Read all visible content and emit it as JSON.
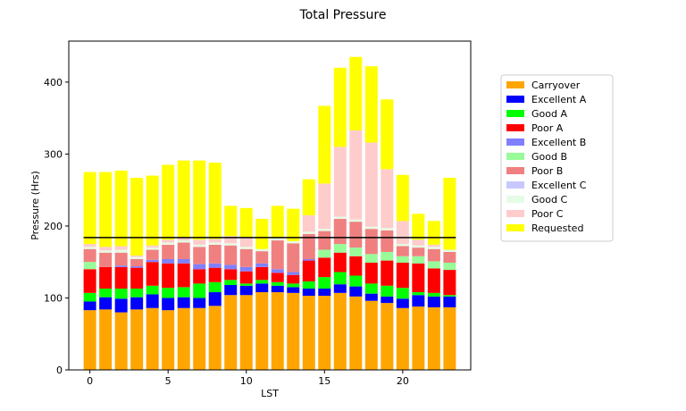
{
  "chart_data": {
    "type": "bar",
    "stacked": true,
    "title": "Total Pressure",
    "xlabel": "LST",
    "ylabel": "Pressure (Hrs)",
    "xlim": [
      -1.35,
      24.35
    ],
    "ylim": [
      0,
      457
    ],
    "xticks": [
      0,
      5,
      10,
      15,
      20
    ],
    "yticks": [
      0,
      100,
      200,
      300,
      400
    ],
    "grid": false,
    "legend_position": "right",
    "categories": [
      0,
      1,
      2,
      3,
      4,
      5,
      6,
      7,
      8,
      9,
      10,
      11,
      12,
      13,
      14,
      15,
      16,
      17,
      18,
      19,
      20,
      21,
      22,
      23
    ],
    "series": [
      {
        "name": "Carryover",
        "color": "#ffa500",
        "values": [
          83,
          84,
          80,
          84,
          86,
          83,
          86,
          86,
          89,
          104,
          104,
          108,
          108,
          107,
          103,
          103,
          107,
          102,
          96,
          93,
          86,
          88,
          87,
          87
        ]
      },
      {
        "name": "Excellent A",
        "color": "#0000ff",
        "values": [
          12,
          17,
          19,
          17,
          19,
          17,
          15,
          14,
          19,
          14,
          13,
          12,
          9,
          8,
          10,
          10,
          12,
          14,
          10,
          9,
          13,
          16,
          15,
          15
        ]
      },
      {
        "name": "Good A",
        "color": "#00ff00",
        "values": [
          12,
          12,
          14,
          12,
          12,
          14,
          14,
          20,
          14,
          7,
          3,
          5,
          5,
          5,
          10,
          16,
          17,
          15,
          14,
          15,
          15,
          4,
          5,
          2
        ]
      },
      {
        "name": "Poor A",
        "color": "#ff0000",
        "values": [
          33,
          30,
          30,
          29,
          33,
          34,
          33,
          20,
          20,
          15,
          17,
          18,
          13,
          12,
          29,
          27,
          27,
          27,
          29,
          35,
          35,
          40,
          34,
          35
        ]
      },
      {
        "name": "Excellent B",
        "color": "#8080ff",
        "values": [
          0,
          0,
          2,
          2,
          3,
          6,
          6,
          7,
          6,
          6,
          6,
          5,
          5,
          4,
          2,
          0,
          0,
          0,
          0,
          0,
          0,
          0,
          0,
          0
        ]
      },
      {
        "name": "Good B",
        "color": "#98fb98",
        "values": [
          10,
          0,
          0,
          0,
          0,
          0,
          0,
          0,
          0,
          0,
          0,
          0,
          0,
          0,
          0,
          11,
          12,
          12,
          12,
          12,
          9,
          10,
          10,
          10
        ]
      },
      {
        "name": "Poor B",
        "color": "#f08080",
        "values": [
          18,
          20,
          18,
          10,
          14,
          20,
          23,
          24,
          26,
          27,
          25,
          17,
          40,
          40,
          35,
          26,
          35,
          36,
          35,
          30,
          14,
          12,
          17,
          15
        ]
      },
      {
        "name": "Excellent C",
        "color": "#c8c8ff",
        "values": [
          0,
          0,
          0,
          0,
          0,
          0,
          0,
          0,
          0,
          0,
          0,
          0,
          0,
          0,
          0,
          0,
          0,
          0,
          0,
          0,
          0,
          0,
          0,
          0
        ]
      },
      {
        "name": "Good C",
        "color": "#e5fce5",
        "values": [
          3,
          3,
          4,
          3,
          3,
          3,
          3,
          3,
          3,
          3,
          3,
          3,
          3,
          3,
          3,
          3,
          3,
          3,
          3,
          3,
          3,
          3,
          3,
          3
        ]
      },
      {
        "name": "Poor C",
        "color": "#ffcccc",
        "values": [
          4,
          5,
          5,
          2,
          3,
          4,
          4,
          7,
          5,
          10,
          14,
          0,
          0,
          0,
          23,
          63,
          97,
          124,
          117,
          82,
          32,
          8,
          3,
          0
        ]
      },
      {
        "name": "Requested",
        "color": "#ffff00",
        "values": [
          100,
          104,
          105,
          108,
          97,
          104,
          107,
          110,
          106,
          42,
          40,
          42,
          45,
          45,
          50,
          108,
          110,
          102,
          106,
          97,
          64,
          36,
          33,
          100
        ]
      }
    ],
    "reference_line": {
      "y": 184,
      "x_from": 0,
      "x_to": 23,
      "color": "#000000"
    }
  }
}
